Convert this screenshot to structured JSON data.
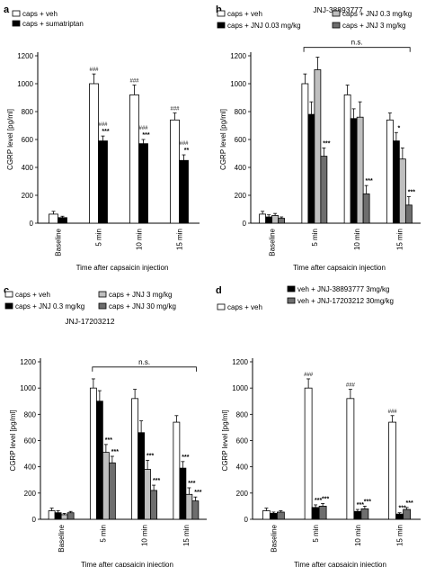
{
  "colors": {
    "white_bar": "#ffffff",
    "black_bar": "#000000",
    "light_gray_bar": "#bfbfbf",
    "dark_gray_bar": "#6e6e6e",
    "axis": "#000000"
  },
  "chart_data": [
    {
      "panel": "a",
      "type": "bar",
      "title": "",
      "ylabel": "CGRP level [pg/ml]",
      "xlabel": "Time after capsaicin injection",
      "ylim": [
        0,
        1200
      ],
      "yticks": [
        0,
        200,
        400,
        600,
        800,
        1000,
        1200
      ],
      "categories": [
        "Baseline",
        "5 min",
        "10 min",
        "15 min"
      ],
      "legend": [
        {
          "label": "caps + veh",
          "color": "#ffffff"
        },
        {
          "label": "caps + sumatriptan",
          "color": "#000000"
        }
      ],
      "series": [
        {
          "name": "caps + veh",
          "color": "#ffffff",
          "values": [
            65,
            1000,
            920,
            740
          ],
          "errors": [
            20,
            70,
            70,
            50
          ]
        },
        {
          "name": "caps + sumatriptan",
          "color": "#000000",
          "values": [
            40,
            590,
            570,
            450
          ],
          "errors": [
            10,
            35,
            30,
            40
          ]
        }
      ],
      "annotations": [
        {
          "series": 0,
          "category": 1,
          "lines": [
            "###"
          ]
        },
        {
          "series": 0,
          "category": 2,
          "lines": [
            "###"
          ]
        },
        {
          "series": 0,
          "category": 3,
          "lines": [
            "###"
          ]
        },
        {
          "series": 1,
          "category": 1,
          "lines": [
            "###",
            "***"
          ]
        },
        {
          "series": 1,
          "category": 2,
          "lines": [
            "###",
            "***"
          ]
        },
        {
          "series": 1,
          "category": 3,
          "lines": [
            "###",
            "**"
          ]
        }
      ],
      "bracket": null
    },
    {
      "panel": "b",
      "type": "bar",
      "title": "JNJ-38893777",
      "ylabel": "CGRP level [pg/ml]",
      "xlabel": "Time after capsaicin injection",
      "ylim": [
        0,
        1200
      ],
      "yticks": [
        0,
        200,
        400,
        600,
        800,
        1000,
        1200
      ],
      "categories": [
        "Baseline",
        "5 min",
        "10 min",
        "15 min"
      ],
      "legend": [
        {
          "label": "caps + veh",
          "color": "#ffffff"
        },
        {
          "label": "caps + JNJ 0.3 mg/kg",
          "color": "#bfbfbf"
        },
        {
          "label": "caps + JNJ 0.03 mg/kg",
          "color": "#000000"
        },
        {
          "label": "caps + JNJ 3 mg/kg",
          "color": "#6e6e6e"
        }
      ],
      "series": [
        {
          "name": "caps + veh",
          "color": "#ffffff",
          "values": [
            65,
            1000,
            920,
            740
          ],
          "errors": [
            20,
            70,
            70,
            50
          ]
        },
        {
          "name": "caps + JNJ 0.03 mg/kg",
          "color": "#000000",
          "values": [
            45,
            780,
            750,
            590
          ],
          "errors": [
            15,
            90,
            70,
            60
          ]
        },
        {
          "name": "caps + JNJ 0.3 mg/kg",
          "color": "#bfbfbf",
          "values": [
            55,
            1100,
            760,
            460
          ],
          "errors": [
            15,
            90,
            110,
            80
          ]
        },
        {
          "name": "caps + JNJ 3 mg/kg",
          "color": "#6e6e6e",
          "values": [
            35,
            480,
            210,
            130
          ],
          "errors": [
            10,
            60,
            60,
            60
          ]
        }
      ],
      "annotations": [
        {
          "series": 3,
          "category": 1,
          "lines": [
            "***"
          ]
        },
        {
          "series": 3,
          "category": 2,
          "lines": [
            "***"
          ]
        },
        {
          "series": 1,
          "category": 3,
          "lines": [
            "*"
          ]
        },
        {
          "series": 3,
          "category": 3,
          "lines": [
            "***"
          ]
        }
      ],
      "bracket": {
        "label": "n.s.",
        "y": 1260,
        "from": 1,
        "to": 3
      }
    },
    {
      "panel": "c",
      "type": "bar",
      "title": "JNJ-17203212",
      "ylabel": "CGRP level [pg/ml]",
      "xlabel": "Time after capsaicin injection",
      "ylim": [
        0,
        1200
      ],
      "yticks": [
        0,
        200,
        400,
        600,
        800,
        1000,
        1200
      ],
      "categories": [
        "Baseline",
        "5 min",
        "10 min",
        "15 min"
      ],
      "legend": [
        {
          "label": "caps + veh",
          "color": "#ffffff"
        },
        {
          "label": "caps + JNJ 3 mg/kg",
          "color": "#bfbfbf"
        },
        {
          "label": "caps + JNJ 0.3 mg/kg",
          "color": "#000000"
        },
        {
          "label": "caps + JNJ 30 mg/kg",
          "color": "#6e6e6e"
        }
      ],
      "series": [
        {
          "name": "caps + veh",
          "color": "#ffffff",
          "values": [
            65,
            1000,
            920,
            740
          ],
          "errors": [
            20,
            70,
            70,
            50
          ]
        },
        {
          "name": "caps + JNJ 0.3 mg/kg",
          "color": "#000000",
          "values": [
            50,
            900,
            660,
            390
          ],
          "errors": [
            15,
            80,
            90,
            50
          ]
        },
        {
          "name": "caps + JNJ 3 mg/kg",
          "color": "#bfbfbf",
          "values": [
            35,
            510,
            380,
            190
          ],
          "errors": [
            10,
            60,
            70,
            50
          ]
        },
        {
          "name": "caps + JNJ 30 mg/kg",
          "color": "#6e6e6e",
          "values": [
            50,
            430,
            220,
            140
          ],
          "errors": [
            10,
            50,
            40,
            30
          ]
        }
      ],
      "annotations": [
        {
          "series": 2,
          "category": 1,
          "lines": [
            "***"
          ]
        },
        {
          "series": 3,
          "category": 1,
          "lines": [
            "***"
          ]
        },
        {
          "series": 2,
          "category": 2,
          "lines": [
            "***"
          ]
        },
        {
          "series": 3,
          "category": 2,
          "lines": [
            "***"
          ]
        },
        {
          "series": 1,
          "category": 3,
          "lines": [
            "***"
          ]
        },
        {
          "series": 2,
          "category": 3,
          "lines": [
            "***"
          ]
        },
        {
          "series": 3,
          "category": 3,
          "lines": [
            "***"
          ]
        }
      ],
      "bracket": {
        "label": "n.s.",
        "y": 1160,
        "from": 1,
        "to": 3
      }
    },
    {
      "panel": "d",
      "type": "bar",
      "title": "",
      "ylabel": "CGRP level [pg/ml]",
      "xlabel": "Time after capsaicin injection",
      "ylim": [
        0,
        1200
      ],
      "yticks": [
        0,
        200,
        400,
        600,
        800,
        1000,
        1200
      ],
      "categories": [
        "Baseline",
        "5 min",
        "10 min",
        "15 min"
      ],
      "legend": [
        {
          "label": "caps + veh",
          "color": "#ffffff"
        },
        {
          "label": "veh + JNJ-38893777 3mg/kg",
          "color": "#000000"
        },
        {
          "label": "veh + JNJ-17203212 30mg/kg",
          "color": "#6e6e6e"
        }
      ],
      "series": [
        {
          "name": "caps + veh",
          "color": "#ffffff",
          "values": [
            65,
            1000,
            920,
            740
          ],
          "errors": [
            20,
            70,
            70,
            50
          ]
        },
        {
          "name": "veh + JNJ-38893777 3mg/kg",
          "color": "#000000",
          "values": [
            45,
            90,
            60,
            40
          ],
          "errors": [
            10,
            20,
            15,
            10
          ]
        },
        {
          "name": "veh + JNJ-17203212 30mg/kg",
          "color": "#6e6e6e",
          "values": [
            55,
            100,
            80,
            75
          ],
          "errors": [
            10,
            20,
            20,
            15
          ]
        }
      ],
      "annotations": [
        {
          "series": 0,
          "category": 1,
          "lines": [
            "###"
          ]
        },
        {
          "series": 0,
          "category": 2,
          "lines": [
            "###"
          ]
        },
        {
          "series": 0,
          "category": 3,
          "lines": [
            "###"
          ]
        },
        {
          "series": 1,
          "category": 1,
          "lines": [
            "***"
          ]
        },
        {
          "series": 2,
          "category": 1,
          "lines": [
            "***"
          ]
        },
        {
          "series": 1,
          "category": 2,
          "lines": [
            "***"
          ]
        },
        {
          "series": 2,
          "category": 2,
          "lines": [
            "***"
          ]
        },
        {
          "series": 1,
          "category": 3,
          "lines": [
            "***"
          ]
        },
        {
          "series": 2,
          "category": 3,
          "lines": [
            "***"
          ]
        }
      ],
      "bracket": null
    }
  ]
}
